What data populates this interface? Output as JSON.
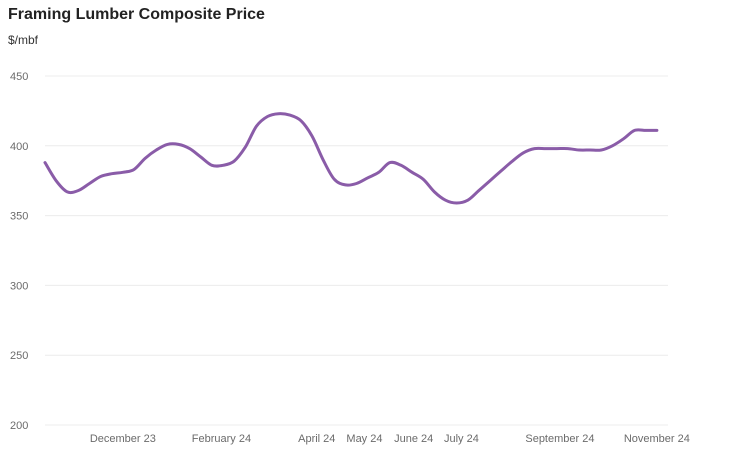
{
  "chart_data": {
    "type": "line",
    "title": "Framing Lumber Composite Price",
    "ylabel": "$/mbf",
    "ylim": [
      200,
      450
    ],
    "yticks": [
      450,
      400,
      350,
      300,
      250,
      200
    ],
    "xlim": [
      "2023-10-27",
      "2024-11-22"
    ],
    "xtick_labels": [
      {
        "label": "December 23",
        "date": "2023-12-15"
      },
      {
        "label": "February 24",
        "date": "2024-02-15"
      },
      {
        "label": "April 24",
        "date": "2024-04-15"
      },
      {
        "label": "May 24",
        "date": "2024-05-15"
      },
      {
        "label": "June 24",
        "date": "2024-06-15"
      },
      {
        "label": "July 24",
        "date": "2024-07-15"
      },
      {
        "label": "September 24",
        "date": "2024-09-15"
      },
      {
        "label": "November 24",
        "date": "2024-11-15"
      }
    ],
    "grid": true,
    "line_color": "#8a5ca8",
    "series": [
      {
        "x": [
          "2023-10-27",
          "2023-11-03",
          "2023-11-10",
          "2023-11-17",
          "2023-11-24",
          "2023-12-01",
          "2023-12-08",
          "2023-12-15",
          "2023-12-22",
          "2023-12-29",
          "2024-01-05",
          "2024-01-12",
          "2024-01-19",
          "2024-01-26",
          "2024-02-02",
          "2024-02-09",
          "2024-02-16",
          "2024-02-23",
          "2024-03-01",
          "2024-03-08",
          "2024-03-15",
          "2024-03-22",
          "2024-03-29",
          "2024-04-05",
          "2024-04-12",
          "2024-04-19",
          "2024-04-26",
          "2024-05-03",
          "2024-05-10",
          "2024-05-17",
          "2024-05-24",
          "2024-05-31",
          "2024-06-07",
          "2024-06-14",
          "2024-06-21",
          "2024-06-28",
          "2024-07-05",
          "2024-07-12",
          "2024-07-19",
          "2024-07-26",
          "2024-08-02",
          "2024-08-09",
          "2024-08-16",
          "2024-08-23",
          "2024-08-30",
          "2024-09-06",
          "2024-09-13",
          "2024-09-20",
          "2024-09-27",
          "2024-10-04",
          "2024-10-11",
          "2024-10-18",
          "2024-10-25",
          "2024-11-01",
          "2024-11-08",
          "2024-11-15"
        ],
        "values": [
          388,
          375,
          367,
          368,
          373,
          378,
          380,
          381,
          383,
          391,
          397,
          401,
          401,
          398,
          392,
          386,
          386,
          389,
          399,
          414,
          421,
          423,
          422,
          418,
          407,
          390,
          376,
          372,
          373,
          377,
          381,
          388,
          386,
          381,
          376,
          367,
          361,
          359,
          361,
          368,
          375,
          382,
          389,
          395,
          398,
          398,
          398,
          398,
          397,
          397,
          397,
          400,
          405,
          411,
          411,
          411
        ]
      }
    ]
  }
}
